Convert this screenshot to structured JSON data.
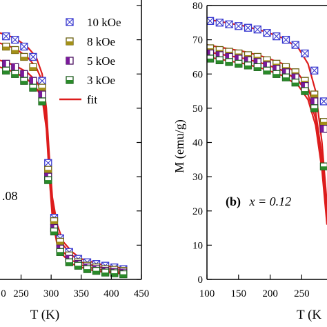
{
  "chart_data": [
    {
      "type": "scatter",
      "panel": "a",
      "panel_label": "",
      "panel_label_value": ".08",
      "xlabel": "T (K)",
      "ylabel": "",
      "xlim": [
        215,
        450
      ],
      "ylim": [
        0,
        80
      ],
      "x_ticks": [
        250,
        300,
        350,
        400,
        450
      ],
      "x_tick_labels": [
        "250",
        "300",
        "350",
        "400",
        "450"
      ],
      "partial_tick_label": "0",
      "legend": {
        "placement": "top-right",
        "entries": [
          {
            "label": "10 kOe",
            "marker": "square-x"
          },
          {
            "label": "8 kOe",
            "marker": "square-bottom-filled"
          },
          {
            "label": "5 kOe",
            "marker": "square-left-filled"
          },
          {
            "label": "3 kOe",
            "marker": "square-bottom-filled-green"
          },
          {
            "label": "fit",
            "marker": "line"
          }
        ]
      },
      "series": [
        {
          "name": "10 kOe",
          "color": "#3a3ad0",
          "fill": "#3a3ad0",
          "marker": "square-x",
          "x": [
            225,
            240,
            255,
            270,
            285,
            295,
            305,
            315,
            330,
            345,
            360,
            375,
            390,
            405,
            420
          ],
          "y": [
            71,
            70,
            68,
            65,
            58,
            34,
            18,
            12,
            8,
            6,
            5,
            4.5,
            4,
            3.5,
            3
          ]
        },
        {
          "name": "8 kOe",
          "color": "#6b6010",
          "fill": "#a39018",
          "marker": "square-bottom-filled",
          "x": [
            225,
            240,
            255,
            270,
            285,
            295,
            305,
            315,
            330,
            345,
            360,
            375,
            390,
            405,
            420
          ],
          "y": [
            68,
            67,
            65,
            62,
            56,
            32,
            17,
            11,
            7,
            5,
            4,
            3.5,
            3,
            2.8,
            2.5
          ]
        },
        {
          "name": "5 kOe",
          "color": "#4a1060",
          "fill": "#7a1a9a",
          "marker": "square-left-filled",
          "x": [
            225,
            240,
            255,
            270,
            285,
            295,
            305,
            315,
            330,
            345,
            360,
            375,
            390,
            405,
            420
          ],
          "y": [
            63,
            62,
            60,
            58,
            54,
            30,
            15,
            9,
            6,
            4.5,
            3.5,
            3,
            2.5,
            2.2,
            2
          ]
        },
        {
          "name": "3 kOe",
          "color": "#1a5a1a",
          "fill": "#2a8a2a",
          "marker": "square-bottom-filled",
          "x": [
            225,
            240,
            255,
            270,
            285,
            295,
            305,
            315,
            330,
            345,
            360,
            375,
            390,
            405,
            420
          ],
          "y": [
            61,
            60,
            58,
            56,
            52,
            29,
            14,
            8,
            5,
            4,
            3,
            2.5,
            2,
            1.8,
            1.5
          ]
        }
      ],
      "fits": [
        {
          "name": "fit",
          "color": "#dd1c1c",
          "x": [
            215,
            240,
            260,
            275,
            285,
            292,
            297,
            302,
            310,
            320,
            335,
            350,
            370,
            390,
            410,
            425
          ],
          "y": [
            72,
            70.5,
            68,
            65,
            60,
            50,
            36,
            24,
            16,
            11,
            8,
            6,
            5,
            4,
            3.5,
            3
          ]
        },
        {
          "name": "fit",
          "color": "#dd1c1c",
          "x": [
            215,
            240,
            260,
            275,
            285,
            292,
            297,
            302,
            310,
            320,
            335,
            350,
            370,
            390,
            410,
            425
          ],
          "y": [
            69,
            67.5,
            65,
            62,
            58,
            48,
            34,
            22,
            14,
            10,
            7,
            5,
            4,
            3.2,
            2.8,
            2.5
          ]
        },
        {
          "name": "fit",
          "color": "#dd1c1c",
          "x": [
            215,
            240,
            260,
            275,
            285,
            292,
            297,
            302,
            310,
            320,
            335,
            350,
            370,
            390,
            410,
            425
          ],
          "y": [
            64,
            62.5,
            60.5,
            58,
            55,
            46,
            32,
            20,
            12,
            8,
            5.5,
            4.2,
            3.2,
            2.6,
            2.2,
            2
          ]
        },
        {
          "name": "fit",
          "color": "#dd1c1c",
          "x": [
            215,
            240,
            260,
            275,
            285,
            292,
            297,
            302,
            310,
            320,
            335,
            350,
            370,
            390,
            410,
            425
          ],
          "y": [
            62,
            60.5,
            58.5,
            56,
            53,
            44,
            30,
            18,
            10,
            7,
            4.5,
            3.5,
            2.6,
            2.1,
            1.8,
            1.5
          ]
        }
      ]
    },
    {
      "type": "scatter",
      "panel": "b",
      "panel_label": "(b)",
      "panel_label_eq": "x = 0.12",
      "xlabel": "T (K",
      "ylabel": "M (emu/g)",
      "xlim": [
        100,
        290
      ],
      "ylim": [
        0,
        80
      ],
      "x_ticks": [
        100,
        150,
        200,
        250
      ],
      "x_tick_labels": [
        "100",
        "150",
        "200",
        "250"
      ],
      "y_ticks": [
        0,
        10,
        20,
        30,
        40,
        50,
        60,
        70,
        80
      ],
      "y_tick_labels": [
        "0",
        "10",
        "20",
        "30",
        "40",
        "50",
        "60",
        "70",
        "80"
      ],
      "series": [
        {
          "name": "10 kOe",
          "color": "#3a3ad0",
          "fill": "#3a3ad0",
          "marker": "square-x",
          "x": [
            105,
            120,
            135,
            150,
            165,
            180,
            195,
            210,
            225,
            240,
            255,
            270,
            285
          ],
          "y": [
            75.5,
            75,
            74.5,
            74,
            73.5,
            73,
            72,
            71,
            70,
            68.5,
            66,
            61,
            52
          ]
        },
        {
          "name": "8 kOe",
          "color": "#6b6010",
          "fill": "#a39018",
          "marker": "square-bottom-filled",
          "x": [
            105,
            120,
            135,
            150,
            165,
            180,
            195,
            210,
            225,
            240,
            255,
            270,
            285
          ],
          "y": [
            67.5,
            67,
            66.5,
            66,
            65.5,
            65,
            64,
            63,
            62,
            60.5,
            58,
            54,
            46
          ]
        },
        {
          "name": "5 kOe",
          "color": "#4a1060",
          "fill": "#7a1a9a",
          "marker": "square-left-filled",
          "x": [
            105,
            120,
            135,
            150,
            165,
            180,
            195,
            210,
            225,
            240,
            255,
            270,
            285
          ],
          "y": [
            66,
            65.5,
            65,
            64.5,
            64,
            63.5,
            62.5,
            61.5,
            60.5,
            59,
            56.5,
            52,
            44
          ]
        },
        {
          "name": "3 kOe",
          "color": "#1a5a1a",
          "fill": "#2a8a2a",
          "marker": "square-bottom-filled",
          "x": [
            105,
            120,
            135,
            150,
            165,
            180,
            195,
            210,
            225,
            240,
            255,
            270,
            285
          ],
          "y": [
            64.5,
            64,
            63.5,
            63,
            62.5,
            62,
            61,
            60,
            59,
            57.5,
            55,
            50,
            33
          ]
        }
      ],
      "fits": [
        {
          "name": "fit",
          "color": "#dd1c1c",
          "x": [
            100,
            130,
            160,
            190,
            220,
            245,
            260,
            272,
            282,
            290
          ],
          "y": [
            76,
            75,
            74,
            72.5,
            70.5,
            67.5,
            63,
            55,
            40,
            22
          ]
        },
        {
          "name": "fit",
          "color": "#dd1c1c",
          "x": [
            100,
            130,
            160,
            190,
            220,
            245,
            260,
            272,
            282,
            290
          ],
          "y": [
            68.5,
            67.5,
            66.5,
            65,
            63,
            60,
            56,
            49,
            36,
            20
          ]
        },
        {
          "name": "fit",
          "color": "#dd1c1c",
          "x": [
            100,
            130,
            160,
            190,
            220,
            245,
            260,
            272,
            282,
            290
          ],
          "y": [
            66.5,
            65.5,
            64.5,
            63,
            61,
            58,
            54,
            47,
            34,
            18
          ]
        },
        {
          "name": "fit",
          "color": "#dd1c1c",
          "x": [
            100,
            130,
            160,
            190,
            220,
            245,
            260,
            272,
            282,
            290
          ],
          "y": [
            65,
            64,
            63,
            61.5,
            59.5,
            56.5,
            52.5,
            45,
            32,
            16
          ]
        }
      ]
    }
  ]
}
